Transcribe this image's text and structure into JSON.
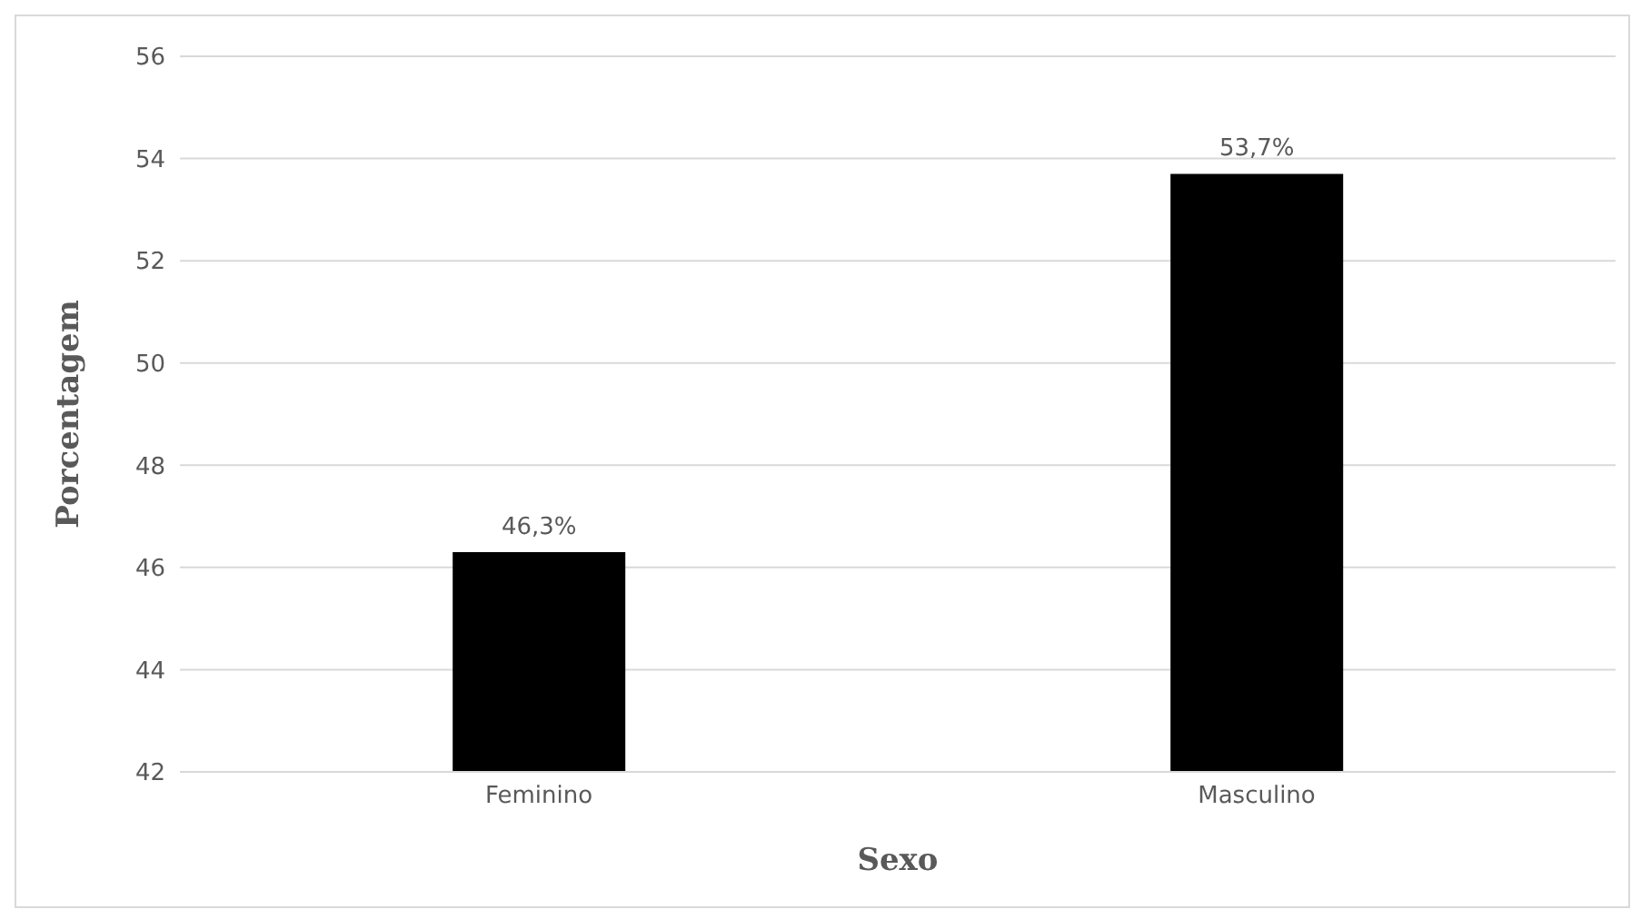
{
  "chart_data": {
    "type": "bar",
    "xlabel": "Sexo",
    "ylabel": "Porcentagem",
    "categories": [
      "Feminino",
      "Masculino"
    ],
    "values": [
      46.3,
      53.7
    ],
    "color": "#000000",
    "value_labels": [
      "46,3%",
      "53,7%"
    ],
    "ylim": [
      42,
      56
    ],
    "yticks": [
      42,
      44,
      46,
      48,
      50,
      52,
      54,
      56
    ],
    "grid": "y"
  }
}
